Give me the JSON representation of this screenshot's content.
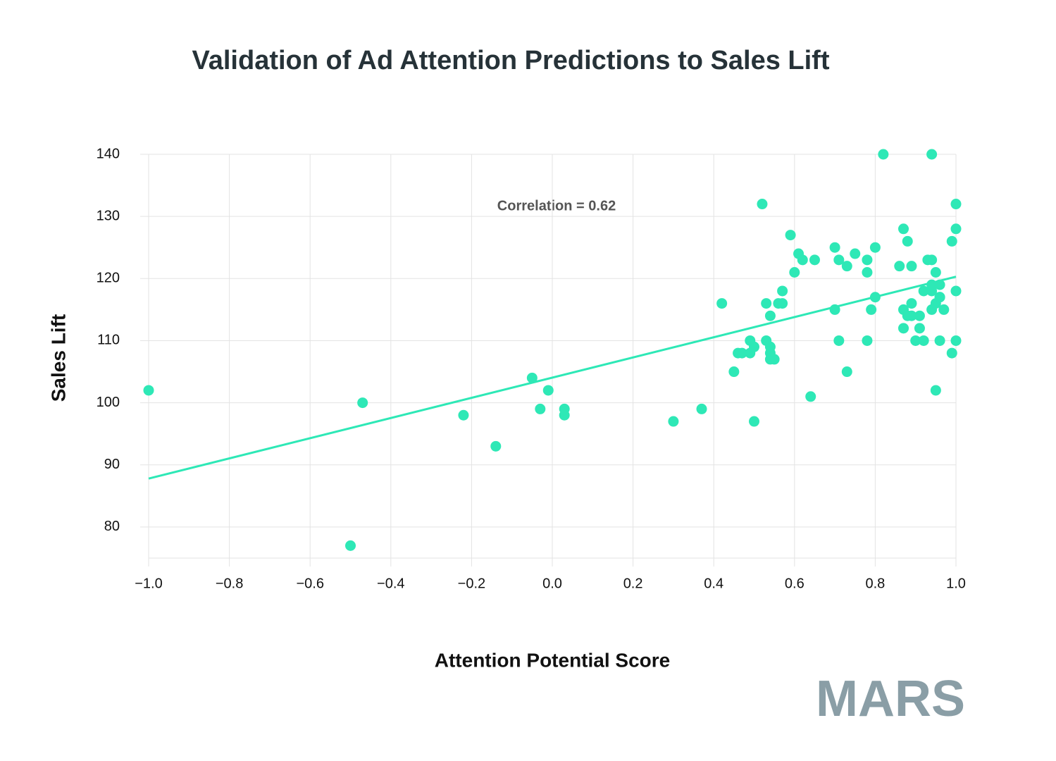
{
  "chart_data": {
    "type": "scatter",
    "title": "Validation of Ad Attention Predictions to Sales Lift",
    "x_label": "Attention Potential Score",
    "y_label": "Sales Lift",
    "annotation": "Correlation = 0.62",
    "logo": "MARS",
    "xlim": [
      -1.0,
      1.0
    ],
    "ylim": [
      75,
      140
    ],
    "xticks": [
      {
        "value": -1.0,
        "label": "−1.0"
      },
      {
        "value": -0.8,
        "label": "−0.8"
      },
      {
        "value": -0.6,
        "label": "−0.6"
      },
      {
        "value": -0.4,
        "label": "−0.4"
      },
      {
        "value": -0.2,
        "label": "−0.2"
      },
      {
        "value": 0.0,
        "label": "0.0"
      },
      {
        "value": 0.2,
        "label": "0.2"
      },
      {
        "value": 0.4,
        "label": "0.4"
      },
      {
        "value": 0.6,
        "label": "0.6"
      },
      {
        "value": 0.8,
        "label": "0.8"
      },
      {
        "value": 1.0,
        "label": "1.0"
      }
    ],
    "yticks": [
      80,
      90,
      100,
      110,
      120,
      130,
      140
    ],
    "grid": true,
    "color": "#2ee8b6",
    "x": [
      -1.0,
      -0.47,
      -0.5,
      -0.22,
      -0.14,
      -0.05,
      -0.03,
      -0.01,
      0.03,
      0.03,
      0.3,
      0.37,
      0.42,
      0.45,
      0.46,
      0.47,
      0.49,
      0.49,
      0.5,
      0.5,
      0.52,
      0.53,
      0.53,
      0.54,
      0.54,
      0.54,
      0.54,
      0.55,
      0.56,
      0.57,
      0.57,
      0.59,
      0.6,
      0.61,
      0.62,
      0.64,
      0.65,
      0.7,
      0.7,
      0.71,
      0.71,
      0.73,
      0.73,
      0.75,
      0.78,
      0.78,
      0.78,
      0.79,
      0.8,
      0.8,
      0.82,
      0.86,
      0.87,
      0.87,
      0.87,
      0.88,
      0.88,
      0.89,
      0.89,
      0.89,
      0.9,
      0.91,
      0.91,
      0.92,
      0.92,
      0.93,
      0.94,
      0.94,
      0.94,
      0.94,
      0.94,
      0.95,
      0.95,
      0.95,
      0.96,
      0.96,
      0.96,
      0.96,
      0.97,
      0.99,
      0.99,
      1.0,
      1.0,
      1.0,
      1.0
    ],
    "values": [
      102,
      100,
      77,
      98,
      93,
      104,
      99,
      102,
      99,
      98,
      97,
      99,
      116,
      105,
      108,
      108,
      110,
      108,
      109,
      97,
      132,
      116,
      110,
      114,
      109,
      108,
      107,
      107,
      116,
      116,
      118,
      127,
      121,
      124,
      123,
      101,
      123,
      125,
      115,
      123,
      110,
      122,
      105,
      124,
      121,
      123,
      110,
      115,
      125,
      117,
      140,
      122,
      112,
      128,
      115,
      126,
      114,
      116,
      114,
      122,
      110,
      114,
      112,
      110,
      118,
      123,
      119,
      123,
      118,
      140,
      115,
      116,
      121,
      102,
      117,
      119,
      117,
      110,
      115,
      108,
      126,
      132,
      128,
      118,
      110
    ],
    "trendline": {
      "x": [
        -1.0,
        1.0
      ],
      "values": [
        87.8,
        120.3
      ],
      "color": "#2ee8b6"
    }
  }
}
